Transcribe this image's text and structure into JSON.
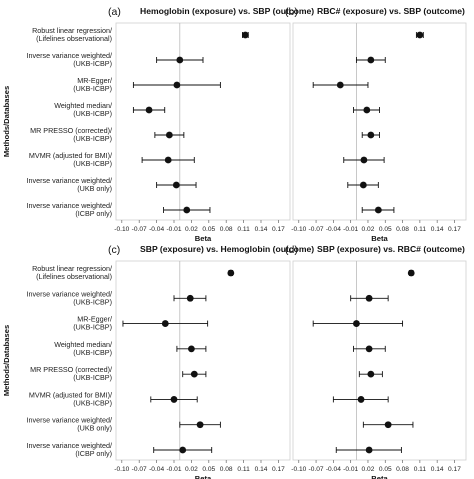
{
  "y_axis_label": "Methods/Databases",
  "methods": [
    [
      "Robust linear regression/",
      "(Lifelines observational)"
    ],
    [
      "Inverse variance weighted/",
      "(UKB-ICBP)"
    ],
    [
      "MR-Egger/",
      "(UKB-ICBP)"
    ],
    [
      "Weighted median/",
      "(UKB-ICBP)"
    ],
    [
      "MR PRESSO (corrected)/",
      "(UKB-ICBP)"
    ],
    [
      "MVMR (adjusted for BMI)/",
      "(UKB-ICBP)"
    ],
    [
      "Inverse variance weighted/",
      "(UKB only)"
    ],
    [
      "Inverse variance weighted/",
      "(ICBP only)"
    ]
  ],
  "chart_data": [
    {
      "type": "scatter",
      "panel": "(a)",
      "title": "Hemoglobin (exposure) vs. SBP (outcome)",
      "xlabel": "Beta",
      "xlim": [
        -0.11,
        0.19
      ],
      "ticks": [
        "-0.10",
        "-0.07",
        "-0.04",
        "-0.01",
        "0.02",
        "0.05",
        "0.08",
        "0.11",
        "0.14",
        "0.17"
      ],
      "points": [
        {
          "beta": 0.113,
          "lo": 0.108,
          "hi": 0.118
        },
        {
          "beta": 0.0,
          "lo": -0.04,
          "hi": 0.04
        },
        {
          "beta": -0.005,
          "lo": -0.08,
          "hi": 0.07
        },
        {
          "beta": -0.053,
          "lo": -0.08,
          "hi": -0.026
        },
        {
          "beta": -0.018,
          "lo": -0.043,
          "hi": 0.007
        },
        {
          "beta": -0.02,
          "lo": -0.065,
          "hi": 0.025
        },
        {
          "beta": -0.006,
          "lo": -0.04,
          "hi": 0.028
        },
        {
          "beta": 0.012,
          "lo": -0.028,
          "hi": 0.052
        }
      ]
    },
    {
      "type": "scatter",
      "panel": "(b)",
      "title": "RBC# (exposure) vs. SBP (outcome)",
      "xlabel": "Beta",
      "xlim": [
        -0.11,
        0.19
      ],
      "ticks": [
        "-0.10",
        "-0.07",
        "-0.04",
        "-0.01",
        "0.02",
        "0.05",
        "0.08",
        "0.11",
        "0.14",
        "0.17"
      ],
      "points": [
        {
          "beta": 0.11,
          "lo": 0.104,
          "hi": 0.116
        },
        {
          "beta": 0.025,
          "lo": 0.0,
          "hi": 0.05
        },
        {
          "beta": -0.028,
          "lo": -0.075,
          "hi": 0.02
        },
        {
          "beta": 0.018,
          "lo": -0.005,
          "hi": 0.04
        },
        {
          "beta": 0.025,
          "lo": 0.01,
          "hi": 0.04
        },
        {
          "beta": 0.013,
          "lo": -0.022,
          "hi": 0.048
        },
        {
          "beta": 0.012,
          "lo": -0.015,
          "hi": 0.038
        },
        {
          "beta": 0.038,
          "lo": 0.01,
          "hi": 0.065
        }
      ]
    },
    {
      "type": "scatter",
      "panel": "(c)",
      "title": "SBP (exposure) vs. Hemoglobin (outcome)",
      "xlabel": "Beta",
      "xlim": [
        -0.11,
        0.19
      ],
      "ticks": [
        "-0.10",
        "-0.07",
        "-0.04",
        "-0.01",
        "0.02",
        "0.05",
        "0.08",
        "0.11",
        "0.14",
        "0.17"
      ],
      "points": [
        {
          "beta": 0.088,
          "lo": 0.085,
          "hi": 0.091
        },
        {
          "beta": 0.018,
          "lo": -0.01,
          "hi": 0.045
        },
        {
          "beta": -0.025,
          "lo": -0.098,
          "hi": 0.048
        },
        {
          "beta": 0.02,
          "lo": -0.005,
          "hi": 0.045
        },
        {
          "beta": 0.025,
          "lo": 0.005,
          "hi": 0.045
        },
        {
          "beta": -0.01,
          "lo": -0.05,
          "hi": 0.03
        },
        {
          "beta": 0.035,
          "lo": 0.0,
          "hi": 0.07
        },
        {
          "beta": 0.005,
          "lo": -0.045,
          "hi": 0.055
        }
      ]
    },
    {
      "type": "scatter",
      "panel": "(d)",
      "title": "SBP (exposure) vs. RBC# (outcome)",
      "xlabel": "Beta",
      "xlim": [
        -0.11,
        0.19
      ],
      "ticks": [
        "-0.10",
        "-0.07",
        "-0.04",
        "-0.01",
        "0.02",
        "0.05",
        "0.08",
        "0.11",
        "0.14",
        "0.17"
      ],
      "points": [
        {
          "beta": 0.095,
          "lo": 0.092,
          "hi": 0.098
        },
        {
          "beta": 0.022,
          "lo": -0.01,
          "hi": 0.055
        },
        {
          "beta": 0.0,
          "lo": -0.075,
          "hi": 0.08
        },
        {
          "beta": 0.022,
          "lo": -0.005,
          "hi": 0.05
        },
        {
          "beta": 0.025,
          "lo": 0.005,
          "hi": 0.045
        },
        {
          "beta": 0.008,
          "lo": -0.04,
          "hi": 0.055
        },
        {
          "beta": 0.055,
          "lo": 0.012,
          "hi": 0.098
        },
        {
          "beta": 0.022,
          "lo": -0.035,
          "hi": 0.078
        }
      ]
    }
  ]
}
